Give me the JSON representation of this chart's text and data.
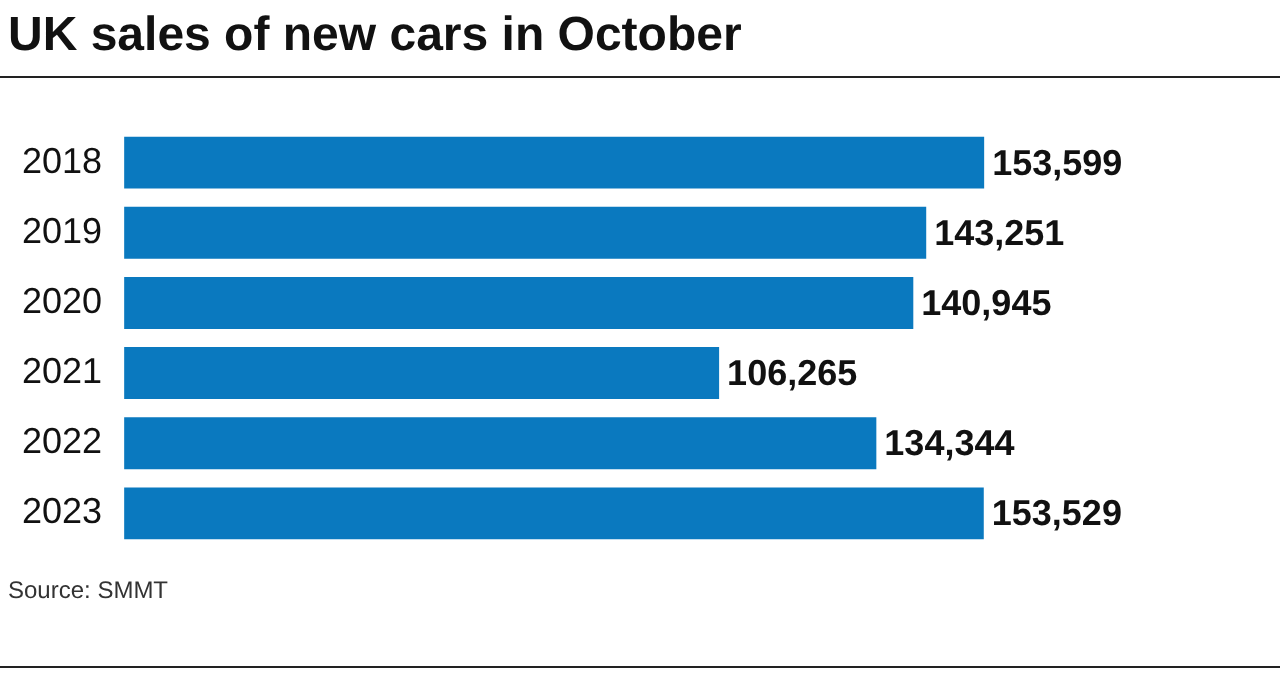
{
  "chart_data": {
    "type": "bar",
    "orientation": "horizontal",
    "title": "UK sales of new cars in October",
    "categories": [
      "2018",
      "2019",
      "2020",
      "2021",
      "2022",
      "2023"
    ],
    "values": [
      153599,
      143251,
      140945,
      106265,
      134344,
      153529
    ],
    "value_labels": [
      "153,599",
      "143,251",
      "140,945",
      "106,265",
      "134,344",
      "153,529"
    ],
    "color": "#0a79bf",
    "annotations": [
      "Source: SMMT"
    ]
  }
}
